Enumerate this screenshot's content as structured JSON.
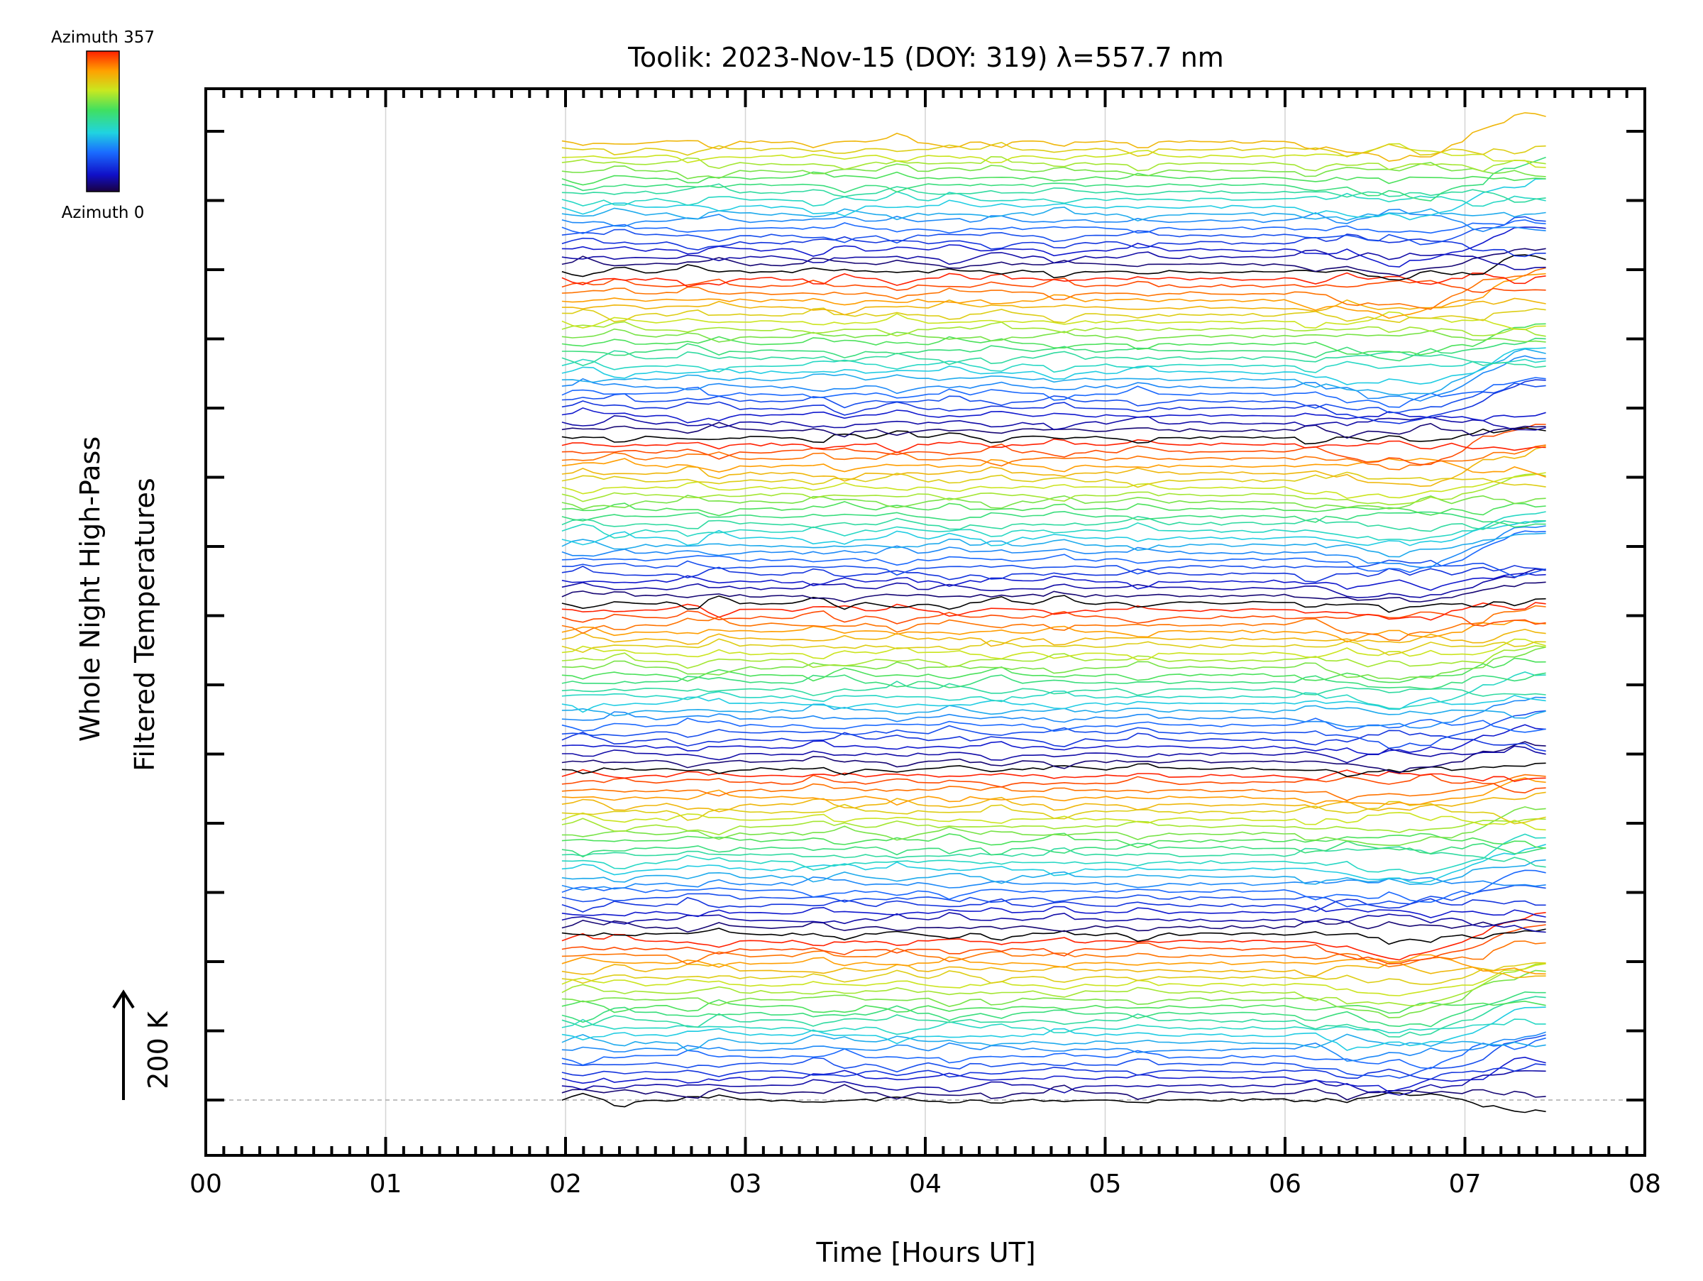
{
  "chart_data": {
    "type": "line",
    "title": "Toolik: 2023-Nov-15 (DOY: 319) λ=557.7 nm",
    "xlabel": "Time [Hours UT]",
    "ylabel_line1": "Whole Night High-Pass",
    "ylabel_line2": "Filtered Temperatures",
    "scale_label": "200 K",
    "colorbar": {
      "top_label": "Azimuth 357",
      "bottom_label": "Azimuth 0",
      "colormap": "rainbow",
      "min": 0,
      "max": 357
    },
    "xlim": [
      0,
      8
    ],
    "x_ticks": [
      "00",
      "01",
      "02",
      "03",
      "04",
      "05",
      "06",
      "07",
      "08"
    ],
    "data_time_range_hours": [
      1.98,
      7.45
    ],
    "baseline_dashed": true,
    "grid": "vertical",
    "traces": {
      "count": 134,
      "color_by": "azimuth",
      "note_visible": "stacked traces, one per azimuth, ordered bottom to top"
    }
  }
}
